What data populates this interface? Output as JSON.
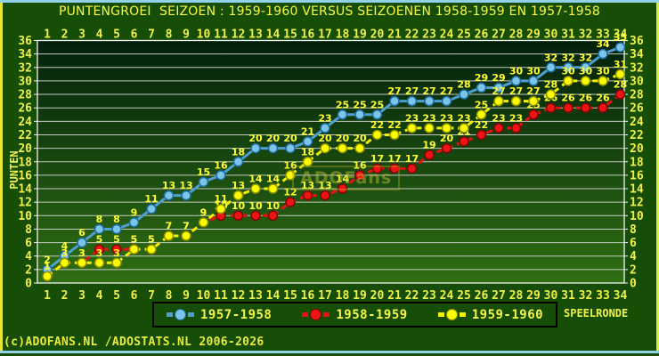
{
  "title": "PUNTENGROEI  SEIZOEN : 1959-1960 VERSUS SEIZOENEN 1958-1959 EN 1957-1958",
  "watermark": "ADOFans",
  "footer": "(c)ADOFANS.NL /ADOSTATS.NL 2006-2026",
  "legend": {
    "items": [
      {
        "label": "1957-1958"
      },
      {
        "label": "1958-1959"
      },
      {
        "label": "1959-1960"
      }
    ]
  },
  "palette": {
    "page_bg": "#164e08",
    "plot_top": "#03210b",
    "plot_bottom": "#2e6e12",
    "grid": "#d8d8d8",
    "frame": "#f2f2f2",
    "axis_text": "#f0f04c",
    "point_label_text": "#ffff31",
    "border_top_bottom": "#92d2e8",
    "border_left_right": "#e6e636",
    "legend_border": "#000000"
  },
  "chart_data": {
    "type": "line",
    "title": "PUNTENGROEI  SEIZOEN : 1959-1960 VERSUS SEIZOENEN 1958-1959 EN 1957-1958",
    "xlabel": "SPEELRONDE",
    "ylabel": "PUNTEN",
    "x": [
      1,
      2,
      3,
      4,
      5,
      6,
      7,
      8,
      9,
      10,
      11,
      12,
      13,
      14,
      15,
      16,
      17,
      18,
      19,
      20,
      21,
      22,
      23,
      24,
      25,
      26,
      27,
      28,
      29,
      30,
      31,
      32,
      33,
      34
    ],
    "y_ticks": [
      0,
      2,
      4,
      6,
      8,
      10,
      12,
      14,
      16,
      18,
      20,
      22,
      24,
      26,
      28,
      30,
      32,
      34,
      36
    ],
    "ylim": [
      0,
      36
    ],
    "grid": true,
    "legend_position": "bottom",
    "series": [
      {
        "name": "1957-1958",
        "values": [
          2,
          4,
          6,
          8,
          8,
          9,
          11,
          13,
          13,
          15,
          16,
          18,
          20,
          20,
          20,
          21,
          23,
          25,
          25,
          25,
          27,
          27,
          27,
          27,
          28,
          29,
          29,
          30,
          30,
          32,
          32,
          32,
          34,
          35
        ],
        "line_color": "#4e9fd2",
        "marker_fill": "#7cc4e8",
        "marker_edge": "#1c6ba0",
        "dashed": false
      },
      {
        "name": "1958-1959",
        "values": [
          1,
          3,
          3,
          5,
          5,
          5,
          5,
          7,
          7,
          9,
          10,
          10,
          10,
          10,
          12,
          13,
          13,
          14,
          16,
          17,
          17,
          17,
          19,
          20,
          21,
          22,
          23,
          23,
          25,
          26,
          26,
          26,
          26,
          28
        ],
        "line_color": "#e81212",
        "marker_fill": "#ee1414",
        "marker_edge": "#7e0606",
        "dashed": true
      },
      {
        "name": "1959-1960",
        "values": [
          1,
          3,
          3,
          3,
          3,
          5,
          5,
          7,
          7,
          9,
          11,
          13,
          14,
          14,
          16,
          18,
          20,
          20,
          20,
          22,
          22,
          23,
          23,
          23,
          23,
          25,
          27,
          27,
          27,
          28,
          30,
          30,
          30,
          31
        ],
        "line_color": "#f2f200",
        "marker_fill": "#fcfc00",
        "marker_edge": "#8f8f00",
        "dashed": true
      }
    ]
  }
}
